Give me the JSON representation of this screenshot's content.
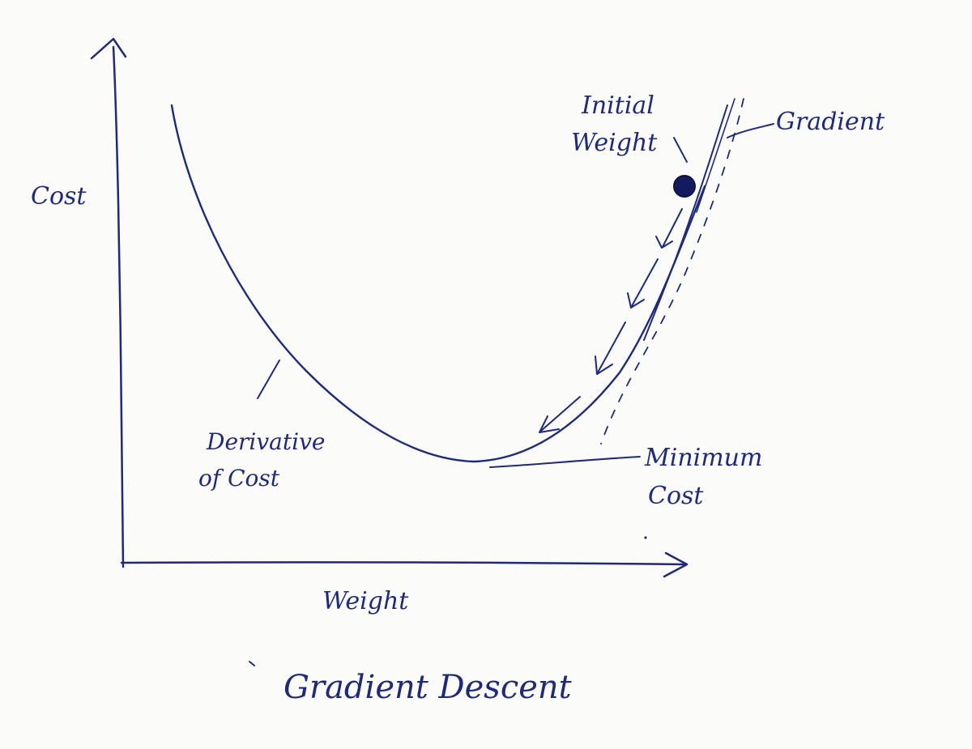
{
  "title": "Gradient Descent",
  "axes": {
    "x_label": "Weight",
    "y_label": "Cost"
  },
  "annotations": {
    "initial_weight_line1": "Initial",
    "initial_weight_line2": "Weight",
    "gradient": "Gradient",
    "derivative_line1": "Derivative",
    "derivative_line2": "of Cost",
    "minimum_line1": "Minimum",
    "minimum_line2": "Cost"
  },
  "colors": {
    "ink": "#1f2a7a",
    "marker": "#141a5e",
    "paper": "#fbfbf9"
  }
}
